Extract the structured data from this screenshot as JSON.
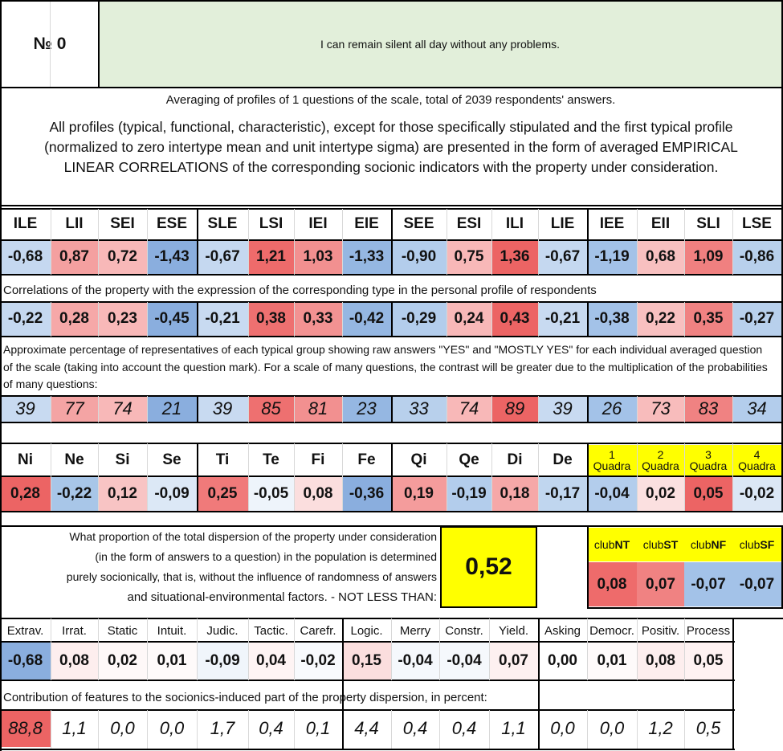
{
  "question": {
    "number_label": "№",
    "number": "0",
    "text": "I can remain silent all day without any problems."
  },
  "intro": {
    "averaging": "Averaging of profiles of 1 questions of the scale, total of 2039 respondents' answers.",
    "description": "All profiles (typical, functional, characteristic), except for those specifically stipulated and the first typical profile (normalized to zero intertype mean and unit intertype sigma) are presented in the form of averaged EMPIRICAL LINEAR CORRELATIONS of the corresponding socionic indicators with the property under consideration."
  },
  "types": {
    "headers": [
      "ILE",
      "LII",
      "SEI",
      "ESE",
      "SLE",
      "LSI",
      "IEI",
      "EIE",
      "SEE",
      "ESI",
      "ILI",
      "LIE",
      "IEE",
      "EII",
      "SLI",
      "LSE"
    ],
    "profile": [
      "-0,68",
      "0,87",
      "0,72",
      "-1,43",
      "-0,67",
      "1,21",
      "1,03",
      "-1,33",
      "-0,90",
      "0,75",
      "1,36",
      "-0,67",
      "-1,19",
      "0,68",
      "1,09",
      "-0,86"
    ],
    "profile_colors": [
      "#c5d8f0",
      "#f4a0a0",
      "#f8b8b8",
      "#8aaede",
      "#c5d8f0",
      "#ee6b6b",
      "#f29090",
      "#95b7e2",
      "#b3cdec",
      "#f8b8b8",
      "#ec6464",
      "#c5d8f0",
      "#a3c2e8",
      "#f8c0c0",
      "#f08080",
      "#b8d0ec"
    ],
    "correlation_caption": "Correlations of the property with the expression of the corresponding type in the personal profile of respondents",
    "correlations": [
      "-0,22",
      "0,28",
      "0,23",
      "-0,45",
      "-0,21",
      "0,38",
      "0,33",
      "-0,42",
      "-0,29",
      "0,24",
      "0,43",
      "-0,21",
      "-0,38",
      "0,22",
      "0,35",
      "-0,27"
    ],
    "correlation_colors": [
      "#c5d8f0",
      "#f6a8a8",
      "#f8b8b8",
      "#8aaede",
      "#c8daf1",
      "#ee7070",
      "#f29292",
      "#95b7e2",
      "#b3cdec",
      "#f8b8b8",
      "#ec6464",
      "#c8daf1",
      "#a3c2e8",
      "#f8c0c0",
      "#f08282",
      "#b8d0ec"
    ],
    "percentage_caption": "Approximate percentage of representatives of each typical group showing raw answers \"YES\" and \"MOSTLY YES\" for each individual averaged question of the scale (taking into account the question mark). For a scale of many questions, the contrast will be greater due to the multiplication of the probabilities of many questions:",
    "percentages": [
      "39",
      "77",
      "74",
      "21",
      "39",
      "85",
      "81",
      "23",
      "33",
      "74",
      "89",
      "39",
      "26",
      "73",
      "83",
      "34"
    ],
    "percentage_colors": [
      "#c8daf1",
      "#f4a4a4",
      "#f8b8b8",
      "#8aaede",
      "#c8daf1",
      "#ee7070",
      "#f29090",
      "#95b7e2",
      "#b8d0ec",
      "#f8b8b8",
      "#ec6464",
      "#c8daf1",
      "#a3c2e8",
      "#f8bcbc",
      "#f08282",
      "#b3cdec"
    ]
  },
  "functions": {
    "headers": [
      "Ni",
      "Ne",
      "Si",
      "Se",
      "Ti",
      "Te",
      "Fi",
      "Fe",
      "Qi",
      "Qe",
      "Di",
      "De"
    ],
    "values": [
      "0,28",
      "-0,22",
      "0,12",
      "-0,09",
      "0,25",
      "-0,05",
      "0,08",
      "-0,36",
      "0,19",
      "-0,19",
      "0,18",
      "-0,17"
    ],
    "colors": [
      "#ec6464",
      "#a8c6e8",
      "#f8c4c4",
      "#dce8f6",
      "#f07a7a",
      "#eef4fb",
      "#fbdede",
      "#8aaede",
      "#f49c9c",
      "#b3cdec",
      "#f6a8a8",
      "#c0d6ef"
    ],
    "quadra_headers": [
      {
        "num": "1",
        "label": "Quadra"
      },
      {
        "num": "2",
        "label": "Quadra"
      },
      {
        "num": "3",
        "label": "Quadra"
      },
      {
        "num": "4",
        "label": "Quadra"
      }
    ],
    "quadra_values": [
      "-0,04",
      "0,02",
      "0,05",
      "-0,02"
    ],
    "quadra_colors": [
      "#b3cdec",
      "#fbe0e0",
      "#ec6464",
      "#dbe7f5"
    ]
  },
  "dispersion": {
    "lines": [
      "What proportion of the total dispersion of the property under consideration",
      "(in the form of answers to a question) in the population is determined",
      "purely socionically, that is, without the influence of randomness of answers",
      "and situational-environmental factors. - NOT LESS THAN:"
    ],
    "value": "0,52"
  },
  "clubs": {
    "headers": [
      {
        "prefix": "club",
        "suffix": "NT"
      },
      {
        "prefix": "club",
        "suffix": "ST"
      },
      {
        "prefix": "club",
        "suffix": "NF"
      },
      {
        "prefix": "club",
        "suffix": "SF"
      }
    ],
    "values": [
      "0,08",
      "0,07",
      "-0,07",
      "-0,07"
    ],
    "colors": [
      "#ee6b6b",
      "#f08282",
      "#a3c2e8",
      "#a3c2e8"
    ]
  },
  "traits": {
    "headers": [
      "Extrav.",
      "Irrat.",
      "Static",
      "Intuit.",
      "Judic.",
      "Tactic.",
      "Carefr.",
      "Logic.",
      "Merry",
      "Constr.",
      "Yield.",
      "Asking",
      "Democr.",
      "Positiv.",
      "Process"
    ],
    "values": [
      "-0,68",
      "0,08",
      "0,02",
      "0,01",
      "-0,09",
      "0,04",
      "-0,02",
      "0,15",
      "-0,04",
      "-0,04",
      "0,07",
      "0,00",
      "0,01",
      "0,08",
      "0,05"
    ],
    "colors": [
      "#8aaede",
      "#fdeeee",
      "#fef8f8",
      "#fefafa",
      "#f0f5fb",
      "#fef4f4",
      "#f8fafd",
      "#fbdede",
      "#f5f8fc",
      "#f5f8fc",
      "#fdf0f0",
      "#ffffff",
      "#fefafa",
      "#fdeeee",
      "#fef2f2"
    ],
    "contribution_caption": "Contribution of features to the socionics-induced part of the property dispersion, in percent:",
    "contributions": [
      "88,8",
      "1,1",
      "0,0",
      "0,0",
      "1,7",
      "0,4",
      "0,1",
      "4,4",
      "0,4",
      "0,4",
      "1,1",
      "0,0",
      "0,0",
      "1,2",
      "0,5"
    ],
    "contribution_colors": [
      "#ec6464",
      "#ffffff",
      "#ffffff",
      "#ffffff",
      "#ffffff",
      "#ffffff",
      "#ffffff",
      "#ffffff",
      "#ffffff",
      "#ffffff",
      "#ffffff",
      "#ffffff",
      "#ffffff",
      "#ffffff",
      "#ffffff"
    ]
  },
  "palette": {
    "header_green": "#e2efda",
    "yellow": "#ffff00"
  }
}
